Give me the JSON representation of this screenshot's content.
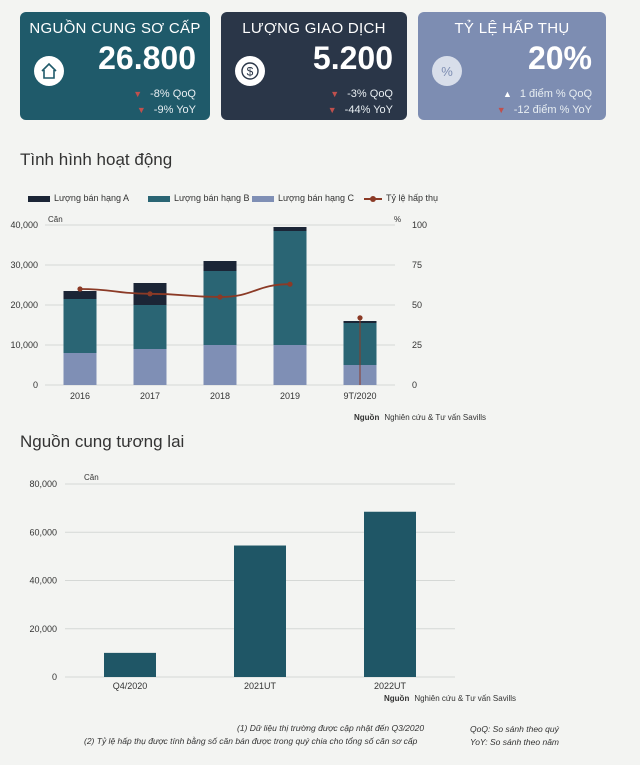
{
  "cards": [
    {
      "title": "NGUỒN CUNG SƠ CẤP",
      "value": "26.800",
      "icon": "house-icon",
      "rows": [
        {
          "dir": "down",
          "text": "-8% QoQ"
        },
        {
          "dir": "down",
          "text": "-9% YoY"
        }
      ]
    },
    {
      "title": "LƯỢNG GIAO DỊCH",
      "value": "5.200",
      "icon": "dollar-icon",
      "rows": [
        {
          "dir": "down",
          "text": "-3% QoQ"
        },
        {
          "dir": "down",
          "text": "-44% YoY"
        }
      ]
    },
    {
      "title": "TỶ LỆ HẤP THỤ",
      "value": "20%",
      "icon": "percent-icon",
      "rows": [
        {
          "dir": "up",
          "text": "1 điểm % QoQ"
        },
        {
          "dir": "down",
          "text": "-12 điểm % YoY"
        }
      ]
    }
  ],
  "section1": {
    "title": "Tình hình hoạt động"
  },
  "section2": {
    "title": "Nguồn cung tương lai"
  },
  "source_label": "Nguồn",
  "source_text": "Nghiên cứu & Tư vấn Savills",
  "footnotes": {
    "note1": "(1) Dữ liệu thị trường được cập nhật đến Q3/2020",
    "note2": "(2) Tỷ lệ hấp thụ được tính bằng số căn bán được trong quý chia cho tổng số căn sơ cấp",
    "qoq": "QoQ: So sánh theo quý",
    "yoy": "YoY: So sánh theo năm"
  },
  "colors": {
    "grade_a": "#1b2536",
    "grade_b": "#2a6574",
    "grade_c": "#7f8fb5",
    "absorption": "#8b3a26",
    "future_bar": "#1f5666"
  },
  "chart_data": [
    {
      "type": "bar",
      "stacked": true,
      "categories": [
        "2016",
        "2017",
        "2018",
        "2019",
        "9T/2020"
      ],
      "series": [
        {
          "name": "Lượng bán hạng A",
          "values": [
            2000,
            5500,
            2500,
            1000,
            500
          ]
        },
        {
          "name": "Lượng bán hạng B",
          "values": [
            13500,
            11000,
            18500,
            28500,
            10500
          ]
        },
        {
          "name": "Lượng bán hạng C",
          "values": [
            8000,
            9000,
            10000,
            10000,
            5000
          ]
        }
      ],
      "line_series": {
        "name": "Tỷ lệ hấp thụ",
        "values": [
          60,
          57,
          55,
          63,
          42
        ]
      },
      "ylabel": "Căn",
      "ylim": [
        0,
        40000
      ],
      "yticks": [
        0,
        10000,
        20000,
        30000,
        40000
      ],
      "ylabel2": "%",
      "y2lim": [
        0,
        100
      ],
      "y2ticks": [
        0,
        25,
        50,
        75,
        100
      ],
      "legend": "top"
    },
    {
      "type": "bar",
      "categories": [
        "Q4/2020",
        "2021UT",
        "2022UT"
      ],
      "values": [
        10000,
        54500,
        68500
      ],
      "ylabel": "Căn",
      "ylim": [
        0,
        80000
      ],
      "yticks": [
        0,
        20000,
        40000,
        60000,
        80000
      ]
    }
  ]
}
